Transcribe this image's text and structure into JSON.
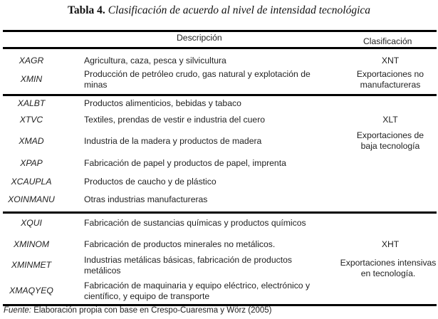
{
  "title": {
    "label": "Tabla 4.",
    "text": "Clasificación de acuerdo al nivel de intensidad tecnológica"
  },
  "headers": {
    "description": "Descripción",
    "classification": "Clasificación"
  },
  "rows": [
    {
      "code": "XAGR",
      "desc": "Agricultura, caza, pesca y silvicultura"
    },
    {
      "code": "XMIN",
      "desc": "Producción de petróleo crudo, gas natural y explotación de minas"
    },
    {
      "code": "XALBT",
      "desc": "Productos alimenticios, bebidas y tabaco"
    },
    {
      "code": "XTVC",
      "desc": "Textiles, prendas de vestir e industria del cuero"
    },
    {
      "code": "XMAD",
      "desc": "Industria de la madera y productos de madera"
    },
    {
      "code": "XPAP",
      "desc": "Fabricación de papel y productos de papel, imprenta"
    },
    {
      "code": "XCAUPLA",
      "desc": "Productos de caucho y de plástico"
    },
    {
      "code": "XOINMANU",
      "desc": "Otras industrias manufactureras"
    },
    {
      "code": "XQUI",
      "desc": "Fabricación de sustancias químicas y productos químicos"
    },
    {
      "code": "XMINOM",
      "desc": "Fabricación de productos minerales no metálicos."
    },
    {
      "code": "XMINMET",
      "desc": "Industrias metálicas básicas, fabricación de productos metálicos"
    },
    {
      "code": "XMAQYEQ",
      "desc": "Fabricación de maquinaria y equipo eléctrico, electrónico y científico, y equipo de transporte"
    }
  ],
  "groups": [
    {
      "code": "XNT",
      "label": "Exportaciones no manufactureras"
    },
    {
      "code": "XLT",
      "label": "Exportaciones de baja tecnología"
    },
    {
      "code": "XHT",
      "label": "Exportaciones intensivas en tecnología."
    }
  ],
  "footer": {
    "label": "Fuente:",
    "text": " Elaboración propia con base en Crespo-Cuaresma y Wörz (2005)"
  }
}
